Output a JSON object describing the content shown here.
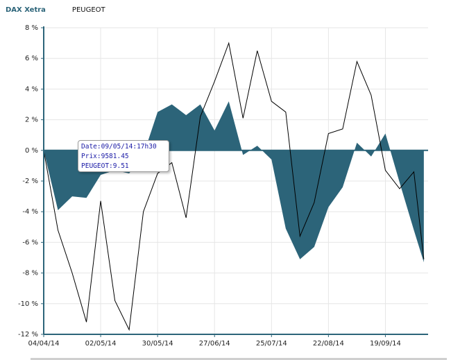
{
  "legend": {
    "series1_label": "DAX Xetra",
    "series2_label": "PEUGEOT"
  },
  "tooltip": {
    "line1": "Date:09/05/14:17h30",
    "line2": "Prix:9581.45",
    "line3": "PEUGEOT:9.51"
  },
  "colors": {
    "area": "#2c6479",
    "line": "#000000",
    "axis": "#2c6479",
    "grid": "#e6e6e6",
    "tooltip_text": "#1a1aa6"
  },
  "chart_data": {
    "type": "area",
    "title": "",
    "xlabel": "",
    "ylabel": "",
    "ylim": [
      -12,
      8
    ],
    "yticks": [
      "8 %",
      "6 %",
      "4 %",
      "2 %",
      "0 %",
      "-2 %",
      "-4 %",
      "-6 %",
      "-8 %",
      "-10 %",
      "-12 %"
    ],
    "ytick_values": [
      8,
      6,
      4,
      2,
      0,
      -2,
      -4,
      -6,
      -8,
      -10,
      -12
    ],
    "xlim": [
      0,
      27
    ],
    "xticks": [
      "04/04/14",
      "02/05/14",
      "30/05/14",
      "27/06/14",
      "25/07/14",
      "22/08/14",
      "19/09/14"
    ],
    "xtick_values": [
      0,
      4,
      8,
      12,
      16,
      20,
      24
    ],
    "grid": true,
    "series": [
      {
        "name": "DAX Xetra",
        "style": "filled-area",
        "x": [
          0,
          1,
          2,
          3,
          4,
          5,
          6,
          7,
          8,
          9,
          10,
          11,
          12,
          13,
          14,
          15,
          16,
          17,
          18,
          19,
          20,
          21,
          22,
          23,
          24,
          25,
          26,
          26.7
        ],
        "values": [
          0,
          -3.9,
          -3.0,
          -3.1,
          -1.6,
          -1.3,
          -1.5,
          -0.3,
          2.5,
          3.0,
          2.3,
          3.0,
          1.3,
          3.2,
          -0.3,
          0.3,
          -0.6,
          -5.1,
          -7.1,
          -6.3,
          -3.7,
          -2.4,
          0.5,
          -0.4,
          1.1,
          -2.1,
          -5.2,
          -7.3
        ]
      },
      {
        "name": "PEUGEOT",
        "style": "line",
        "x": [
          0,
          1,
          2,
          3,
          4,
          5,
          6,
          7,
          8,
          9,
          10,
          11,
          12,
          13,
          14,
          15,
          16,
          17,
          18,
          19,
          20,
          21,
          22,
          23,
          24,
          25,
          26,
          26.7
        ],
        "values": [
          0,
          -5.2,
          -8.0,
          -11.2,
          -3.3,
          -9.8,
          -11.7,
          -4.0,
          -1.5,
          -0.8,
          -4.4,
          2.2,
          4.5,
          7.0,
          2.1,
          6.5,
          3.2,
          2.5,
          -5.6,
          -3.4,
          1.1,
          1.4,
          5.8,
          3.6,
          -1.3,
          -2.5,
          -1.4,
          -7.1
        ]
      }
    ]
  }
}
